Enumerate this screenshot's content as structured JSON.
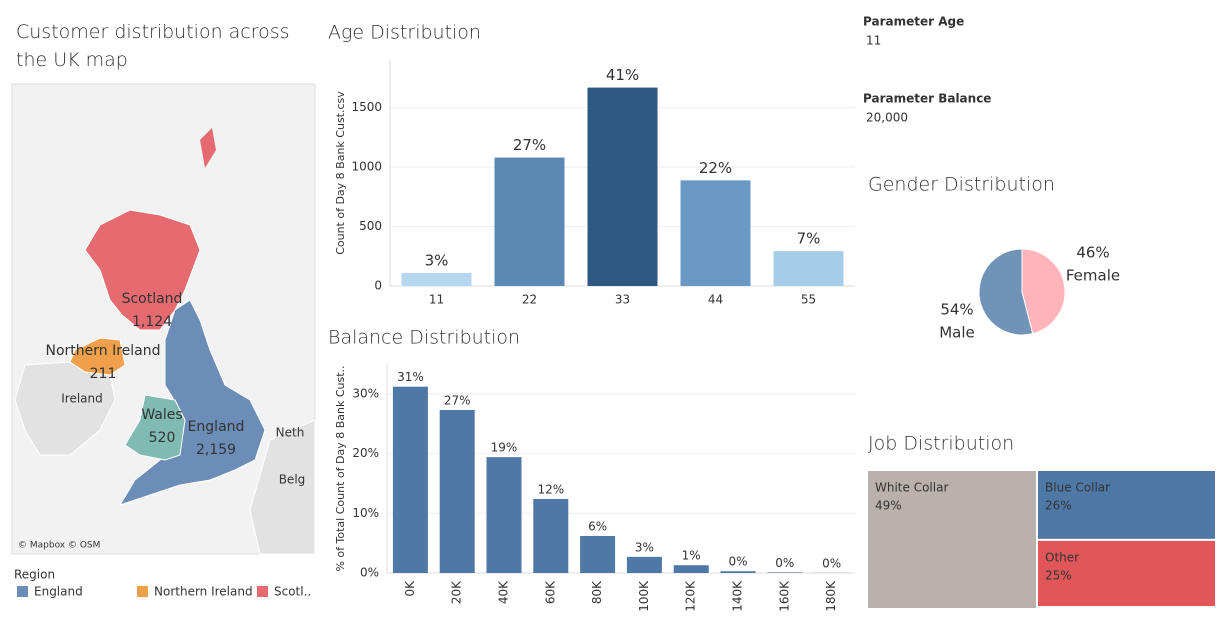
{
  "chart_data": [
    {
      "type": "map",
      "title": "Customer distribution across the UK map",
      "categories": [
        "England",
        "Northern Ireland",
        "Scotland",
        "Wales"
      ],
      "values": [
        2159,
        211,
        1124,
        520
      ],
      "value_labels": [
        "2,159",
        "211",
        "1,124",
        "520"
      ],
      "colors": [
        "#6b8db7",
        "#f0a04b",
        "#e56b70",
        "#7fbab3"
      ],
      "place_labels": [
        "Ireland",
        "Neth",
        "Belg"
      ],
      "credits": "© Mapbox © OSM",
      "legend_title": "Region",
      "legend_labels": [
        "England",
        "Northern Ireland",
        "Scotl.."
      ]
    },
    {
      "type": "bar",
      "title": "Age Distribution",
      "y_label": "Count of Day 8 Bank Cust.csv",
      "categories": [
        "11",
        "22",
        "33",
        "44",
        "55"
      ],
      "values": [
        110,
        1080,
        1668,
        888,
        293
      ],
      "share_labels": [
        "3%",
        "27%",
        "41%",
        "22%",
        "7%"
      ],
      "colors": [
        "#b5d8f0",
        "#5a89b4",
        "#2c5883",
        "#6998c4",
        "#a5cde9"
      ],
      "ylim": [
        0,
        1900
      ],
      "yticks": [
        0,
        500,
        1000,
        1500
      ],
      "grid": true
    },
    {
      "type": "bar",
      "title": "Balance Distribution",
      "y_label": "% of Total Count of Day 8 Bank Cust..",
      "categories": [
        "0K",
        "20K",
        "40K",
        "60K",
        "80K",
        "100K",
        "120K",
        "140K",
        "160K",
        "180K"
      ],
      "values": [
        31.2,
        27.3,
        19.4,
        12.4,
        6.2,
        2.7,
        1.3,
        0.3,
        0.1,
        0.02
      ],
      "value_labels": [
        "31%",
        "27%",
        "19%",
        "12%",
        "6%",
        "3%",
        "1%",
        "0%",
        "0%",
        "0%"
      ],
      "color": "#4e78a6",
      "ylim": [
        0,
        35
      ],
      "yticks": [
        {
          "value": 0,
          "label": "0%"
        },
        {
          "value": 10,
          "label": "10%"
        },
        {
          "value": 20,
          "label": "20%"
        },
        {
          "value": 30,
          "label": "30%"
        }
      ],
      "grid": true
    },
    {
      "type": "pie",
      "title": "Gender Distribution",
      "categories": [
        "Female",
        "Male"
      ],
      "values": [
        46,
        54
      ],
      "value_labels": [
        "46%",
        "54%"
      ],
      "colors": [
        "#ffb3ba",
        "#7193b8"
      ]
    },
    {
      "type": "treemap",
      "title": "Job Distribution",
      "categories": [
        "White Collar",
        "Blue Collar",
        "Other"
      ],
      "values": [
        49,
        26,
        25
      ],
      "value_labels": [
        "49%",
        "26%",
        "25%"
      ],
      "colors": [
        "#bab0ac",
        "#4e79a7",
        "#e15759"
      ]
    }
  ],
  "parameters": [
    {
      "name": "Parameter Age",
      "value": 11
    },
    {
      "name": "Parameter Balance",
      "value": 20000,
      "label": "20,000"
    }
  ]
}
